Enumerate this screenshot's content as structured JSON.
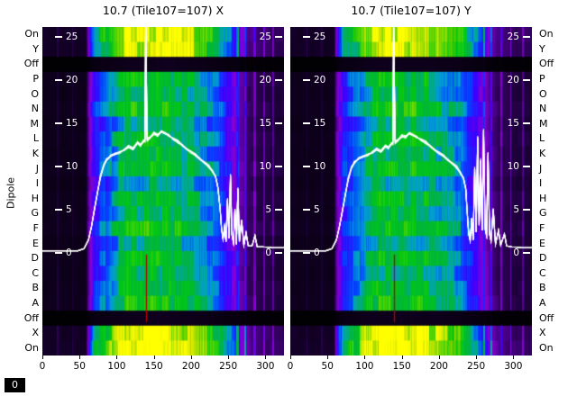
{
  "figure": {
    "dipole_axis_label": "Dipole",
    "corner_zero": "0"
  },
  "chart_data": [
    {
      "type": "heatmap",
      "title": "10.7 (Tile107=107) X",
      "x_range": [
        0,
        325
      ],
      "x_ticks": [
        0,
        50,
        100,
        150,
        200,
        250,
        300
      ],
      "value_ticks": [
        25,
        20,
        15,
        10,
        5,
        0
      ],
      "y_categories": [
        "On",
        "Y",
        "Off",
        "P",
        "O",
        "N",
        "M",
        "L",
        "K",
        "J",
        "I",
        "H",
        "G",
        "F",
        "E",
        "D",
        "C",
        "B",
        "A",
        "Off",
        "X",
        "On"
      ],
      "row_gains": [
        1.35,
        1.32,
        0.07,
        1.02,
        0.96,
        1.06,
        0.9,
        1.0,
        0.95,
        1.03,
        0.88,
        1.0,
        0.94,
        1.05,
        0.9,
        1.0,
        0.96,
        1.0,
        1.04,
        0.07,
        1.35,
        1.42
      ],
      "background_profile": [
        [
          0,
          0.05
        ],
        [
          58,
          0.05
        ],
        [
          63,
          0.3
        ],
        [
          70,
          0.46
        ],
        [
          80,
          0.52
        ],
        [
          92,
          0.58
        ],
        [
          100,
          0.65
        ],
        [
          110,
          0.71
        ],
        [
          165,
          0.72
        ],
        [
          195,
          0.68
        ],
        [
          215,
          0.62
        ],
        [
          232,
          0.55
        ],
        [
          244,
          0.46
        ],
        [
          256,
          0.36
        ],
        [
          266,
          0.25
        ],
        [
          278,
          0.15
        ],
        [
          295,
          0.12
        ],
        [
          325,
          0.1
        ]
      ],
      "streaks": [
        [
          252,
          1.5,
          0.42
        ],
        [
          262,
          1.5,
          0.46
        ],
        [
          272,
          1.5,
          0.4
        ],
        [
          285,
          1.5,
          0.28
        ],
        [
          298,
          1,
          0.24
        ],
        [
          310,
          1,
          0.22
        ],
        [
          20,
          1,
          0.1
        ],
        [
          40,
          1,
          0.09
        ]
      ],
      "colormap": [
        [
          0,
          "#000000"
        ],
        [
          0.1,
          "#1c0038"
        ],
        [
          0.22,
          "#55009c"
        ],
        [
          0.32,
          "#8a00d4"
        ],
        [
          0.42,
          "#3c00ff"
        ],
        [
          0.52,
          "#0048ff"
        ],
        [
          0.6,
          "#00a0d0"
        ],
        [
          0.68,
          "#00b43c"
        ],
        [
          0.76,
          "#00c814"
        ],
        [
          0.85,
          "#64d400"
        ],
        [
          0.93,
          "#d8e800"
        ],
        [
          1,
          "#ffff00"
        ]
      ],
      "line_color": "#ffffff",
      "rfi_line": {
        "x": 140,
        "from": 0,
        "to": -8,
        "color": "#bb0000"
      },
      "spectrum_line": [
        [
          0,
          0.25
        ],
        [
          48,
          0.25
        ],
        [
          56,
          0.5
        ],
        [
          62,
          1.5
        ],
        [
          66,
          3
        ],
        [
          70,
          5
        ],
        [
          74,
          7
        ],
        [
          78,
          8.8
        ],
        [
          82,
          10
        ],
        [
          86,
          10.8
        ],
        [
          92,
          11.2
        ],
        [
          98,
          11.4
        ],
        [
          104,
          11.7
        ],
        [
          110,
          11.9
        ],
        [
          116,
          12.3
        ],
        [
          122,
          12.1
        ],
        [
          128,
          12.8
        ],
        [
          132,
          12.5
        ],
        [
          136,
          12.9
        ],
        [
          138,
          13.0
        ],
        [
          139,
          26.8
        ],
        [
          141,
          13.1
        ],
        [
          145,
          13.3
        ],
        [
          150,
          13.8
        ],
        [
          155,
          13.6
        ],
        [
          160,
          14.1
        ],
        [
          165,
          13.9
        ],
        [
          170,
          13.6
        ],
        [
          176,
          13.2
        ],
        [
          182,
          12.9
        ],
        [
          188,
          12.5
        ],
        [
          194,
          12.1
        ],
        [
          200,
          11.7
        ],
        [
          206,
          11.3
        ],
        [
          212,
          10.9
        ],
        [
          218,
          10.5
        ],
        [
          224,
          10.0
        ],
        [
          229,
          9.5
        ],
        [
          233,
          8.8
        ],
        [
          236,
          7.6
        ],
        [
          239,
          5.2
        ],
        [
          241,
          2.8
        ],
        [
          243,
          1.6
        ],
        [
          245,
          3.0
        ],
        [
          247,
          1.3
        ],
        [
          249,
          6.2
        ],
        [
          251,
          1.7
        ],
        [
          253,
          9.0
        ],
        [
          255,
          2.1
        ],
        [
          257,
          1.2
        ],
        [
          259,
          5.0
        ],
        [
          261,
          1.0
        ],
        [
          263,
          7.4
        ],
        [
          265,
          1.3
        ],
        [
          268,
          3.8
        ],
        [
          271,
          0.9
        ],
        [
          274,
          2.3
        ],
        [
          277,
          0.8
        ],
        [
          282,
          0.8
        ],
        [
          286,
          2.0
        ],
        [
          289,
          0.7
        ],
        [
          296,
          0.7
        ],
        [
          310,
          0.6
        ],
        [
          325,
          0.6
        ]
      ]
    },
    {
      "type": "heatmap",
      "title": "10.7 (Tile107=107) Y",
      "x_range": [
        0,
        325
      ],
      "x_ticks": [
        0,
        50,
        100,
        150,
        200,
        250,
        300
      ],
      "value_ticks": [
        25,
        20,
        15,
        10,
        5,
        0
      ],
      "y_categories": [
        "On",
        "Y",
        "Off",
        "P",
        "O",
        "N",
        "M",
        "L",
        "K",
        "J",
        "I",
        "H",
        "G",
        "F",
        "E",
        "D",
        "C",
        "B",
        "A",
        "Off",
        "X",
        "On"
      ],
      "row_gains": [
        1.35,
        1.3,
        0.07,
        1.0,
        0.95,
        1.05,
        0.92,
        1.0,
        0.96,
        1.02,
        0.9,
        1.0,
        0.95,
        1.04,
        0.9,
        1.0,
        0.95,
        1.0,
        1.05,
        0.07,
        1.36,
        1.42
      ],
      "background_profile": [
        [
          0,
          0.05
        ],
        [
          58,
          0.05
        ],
        [
          63,
          0.3
        ],
        [
          70,
          0.46
        ],
        [
          80,
          0.52
        ],
        [
          92,
          0.58
        ],
        [
          100,
          0.65
        ],
        [
          110,
          0.71
        ],
        [
          165,
          0.72
        ],
        [
          195,
          0.68
        ],
        [
          215,
          0.62
        ],
        [
          232,
          0.55
        ],
        [
          244,
          0.46
        ],
        [
          256,
          0.36
        ],
        [
          266,
          0.25
        ],
        [
          278,
          0.15
        ],
        [
          295,
          0.12
        ],
        [
          325,
          0.1
        ]
      ],
      "streaks": [
        [
          250,
          1.5,
          0.44
        ],
        [
          260,
          1.5,
          0.48
        ],
        [
          270,
          1.5,
          0.42
        ],
        [
          283,
          1.5,
          0.3
        ],
        [
          296,
          1,
          0.24
        ],
        [
          312,
          1,
          0.22
        ],
        [
          22,
          1,
          0.1
        ],
        [
          42,
          1,
          0.09
        ]
      ],
      "colormap": [
        [
          0,
          "#000000"
        ],
        [
          0.1,
          "#1c0038"
        ],
        [
          0.22,
          "#55009c"
        ],
        [
          0.32,
          "#8a00d4"
        ],
        [
          0.42,
          "#3c00ff"
        ],
        [
          0.52,
          "#0048ff"
        ],
        [
          0.6,
          "#00a0d0"
        ],
        [
          0.68,
          "#00b43c"
        ],
        [
          0.76,
          "#00c814"
        ],
        [
          0.85,
          "#64d400"
        ],
        [
          0.93,
          "#d8e800"
        ],
        [
          1,
          "#ffff00"
        ]
      ],
      "line_color": "#ffffff",
      "rfi_line": {
        "x": 140,
        "from": 0,
        "to": -8,
        "color": "#bb0000"
      },
      "spectrum_line": [
        [
          0,
          0.25
        ],
        [
          48,
          0.25
        ],
        [
          56,
          0.5
        ],
        [
          62,
          1.5
        ],
        [
          66,
          3
        ],
        [
          70,
          4.8
        ],
        [
          74,
          6.8
        ],
        [
          78,
          8.6
        ],
        [
          82,
          9.8
        ],
        [
          86,
          10.5
        ],
        [
          92,
          10.9
        ],
        [
          98,
          11.1
        ],
        [
          104,
          11.4
        ],
        [
          110,
          11.6
        ],
        [
          116,
          12.0
        ],
        [
          122,
          11.8
        ],
        [
          128,
          12.4
        ],
        [
          132,
          12.2
        ],
        [
          136,
          12.6
        ],
        [
          138,
          12.7
        ],
        [
          139,
          26.8
        ],
        [
          141,
          12.8
        ],
        [
          145,
          13.0
        ],
        [
          150,
          13.5
        ],
        [
          155,
          13.4
        ],
        [
          160,
          13.9
        ],
        [
          165,
          13.7
        ],
        [
          170,
          13.4
        ],
        [
          176,
          13.1
        ],
        [
          182,
          12.8
        ],
        [
          188,
          12.4
        ],
        [
          194,
          12.0
        ],
        [
          200,
          11.6
        ],
        [
          206,
          11.2
        ],
        [
          212,
          10.8
        ],
        [
          218,
          10.4
        ],
        [
          224,
          9.9
        ],
        [
          229,
          9.3
        ],
        [
          233,
          8.6
        ],
        [
          236,
          7.4
        ],
        [
          238,
          4.6
        ],
        [
          240,
          2.2
        ],
        [
          242,
          1.4
        ],
        [
          244,
          4.0
        ],
        [
          246,
          1.5
        ],
        [
          248,
          9.8
        ],
        [
          250,
          2.4
        ],
        [
          252,
          13.4
        ],
        [
          254,
          3.2
        ],
        [
          256,
          10.8
        ],
        [
          258,
          2.6
        ],
        [
          260,
          14.2
        ],
        [
          262,
          2.8
        ],
        [
          264,
          2.0
        ],
        [
          266,
          11.6
        ],
        [
          268,
          2.2
        ],
        [
          270,
          1.4
        ],
        [
          273,
          5.0
        ],
        [
          276,
          1.0
        ],
        [
          280,
          2.6
        ],
        [
          283,
          0.9
        ],
        [
          288,
          2.2
        ],
        [
          291,
          0.8
        ],
        [
          298,
          0.7
        ],
        [
          312,
          0.6
        ],
        [
          325,
          0.6
        ]
      ]
    }
  ]
}
